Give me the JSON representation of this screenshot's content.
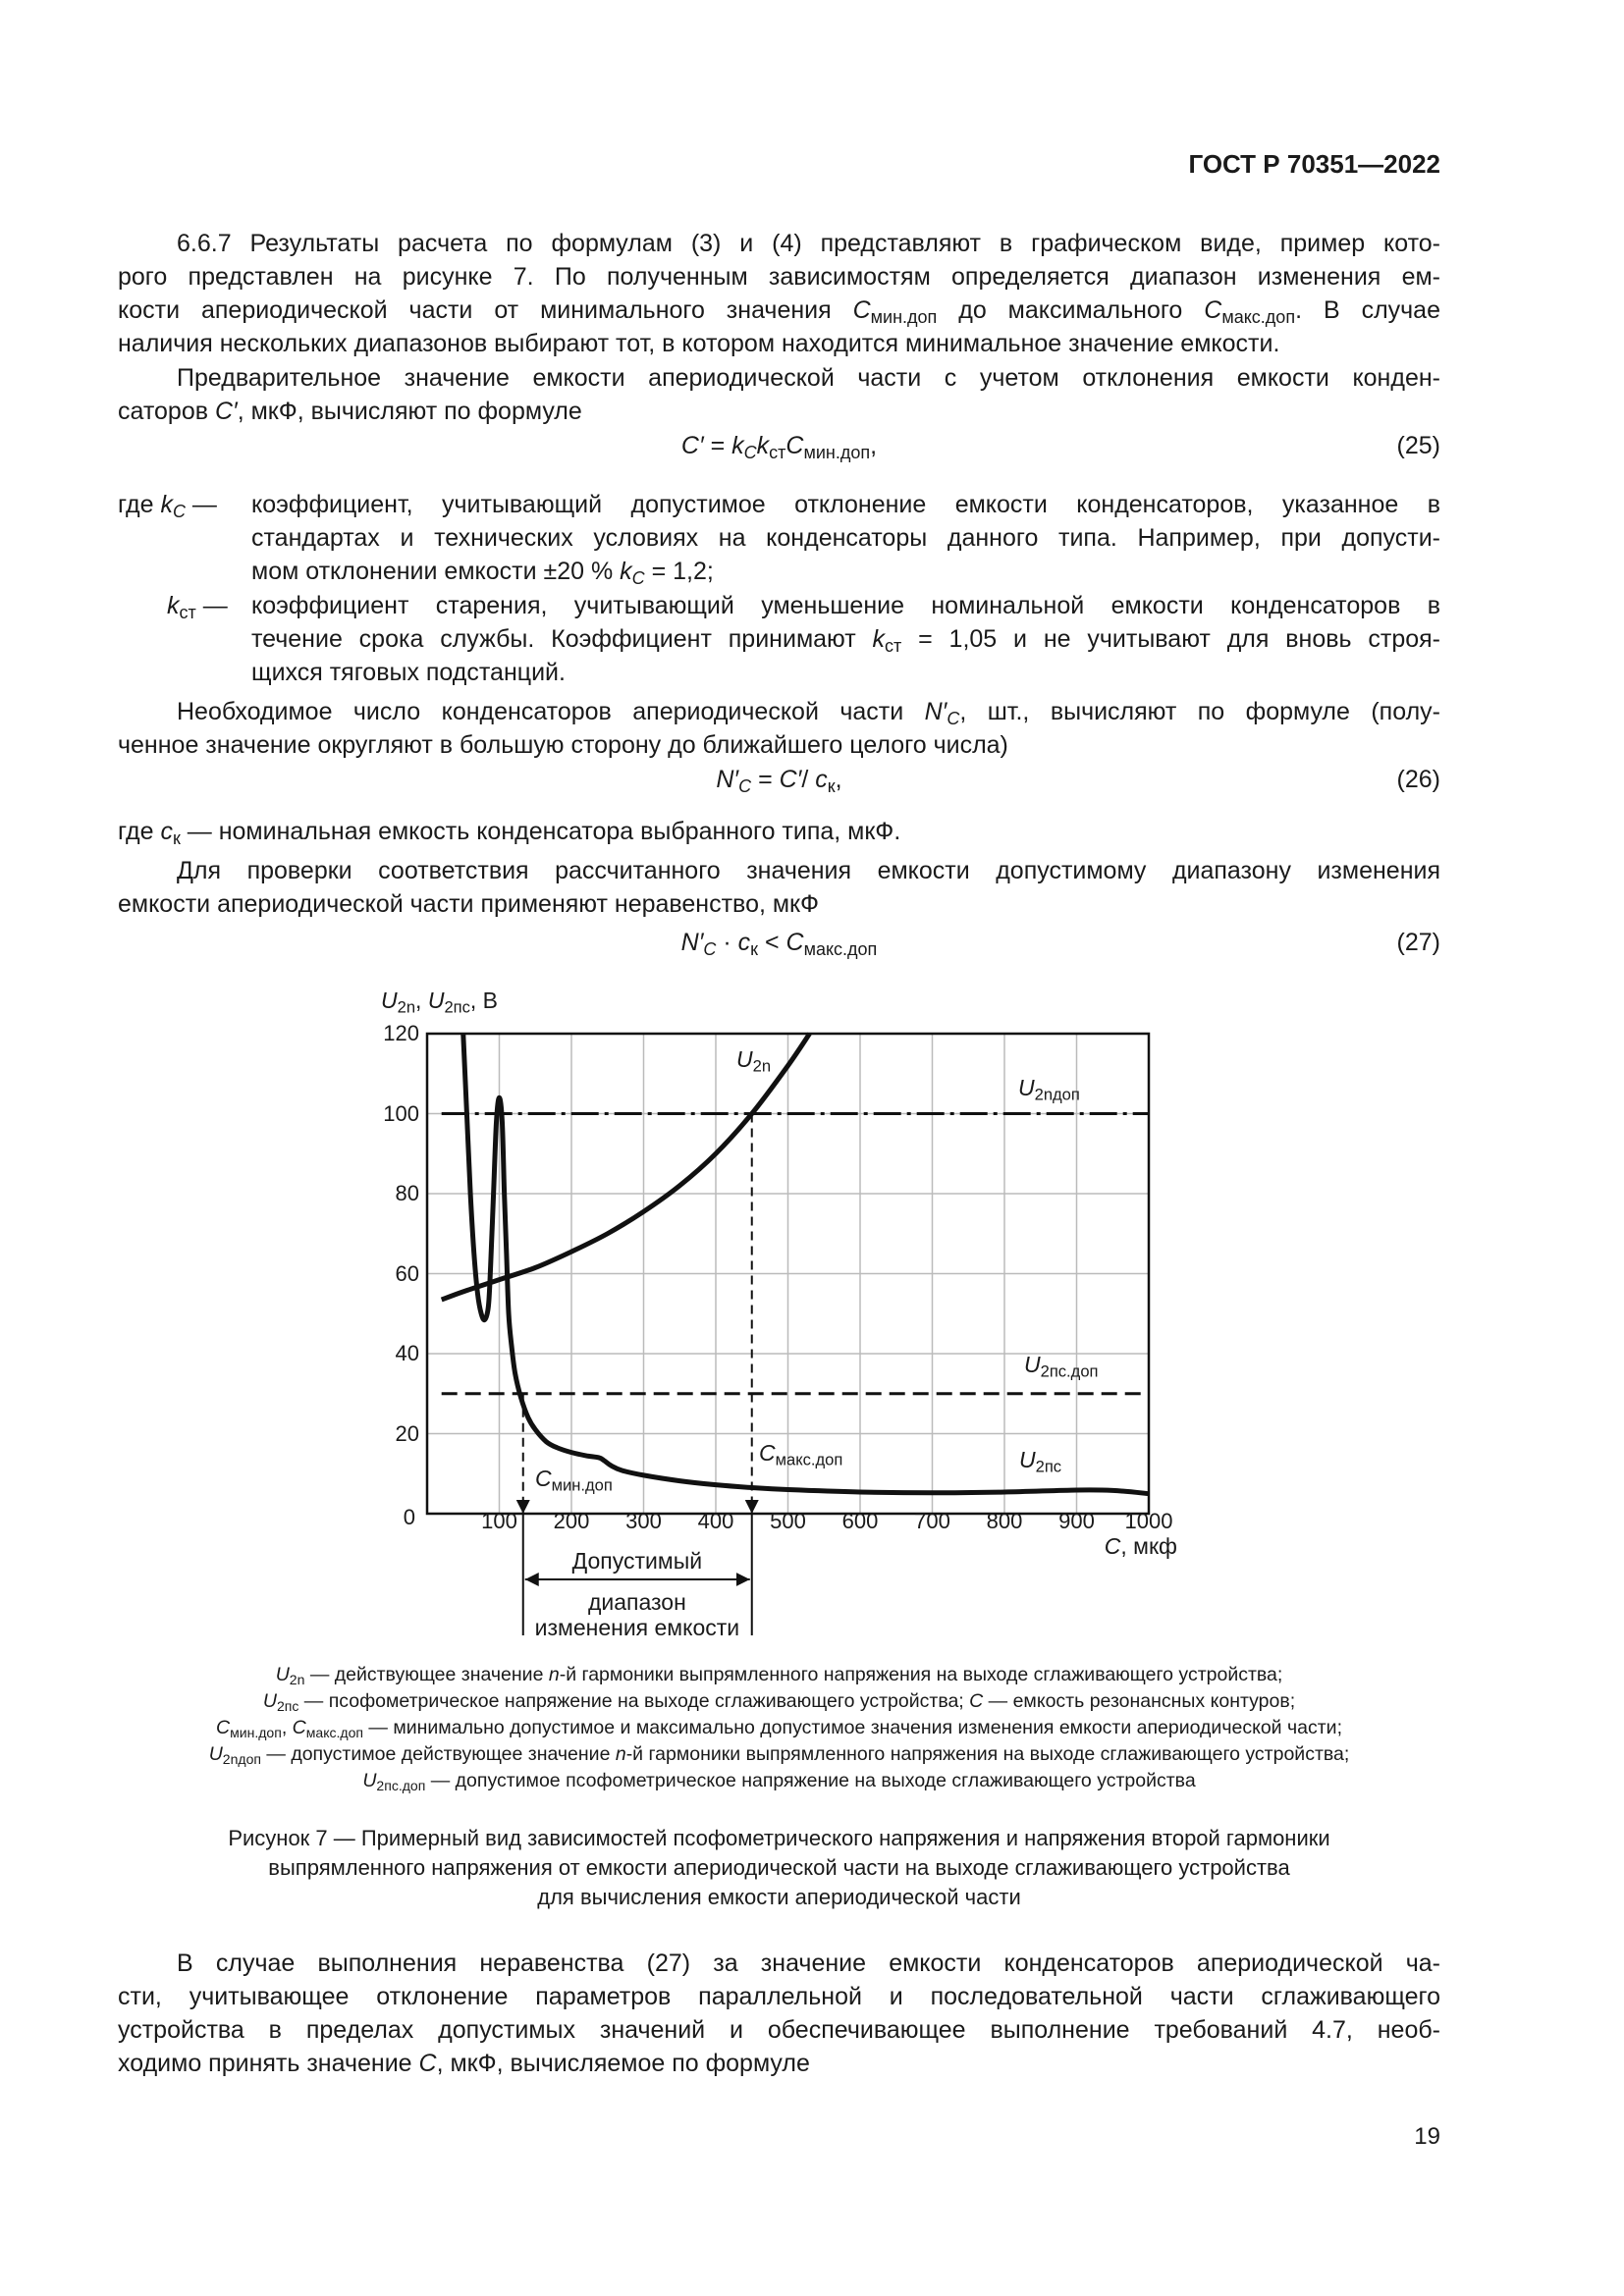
{
  "header": {
    "doc_id": "ГОСТ Р 70351—2022"
  },
  "body": {
    "p1": [
      [
        "6.6.7 Результаты расчета по формулам (3) и (4) представляют в графическом виде, пример кото-"
      ],
      [
        "рого представлен на рисунке 7. По полученным зависимостям определяется диапазон изменения ем-"
      ],
      [
        "кости апериодической части от минимального значения ",
        {
          "v": "C",
          "s": "мин.доп"
        },
        " до максимального ",
        {
          "v": "C",
          "s": "макс.доп"
        },
        ". В случае"
      ],
      [
        "наличия нескольких диапазонов выбирают тот, в котором находится минимальное значение емкости."
      ]
    ],
    "p2": [
      [
        "Предварительное значение емкости апериодической части с учетом отклонения емкости конден-"
      ],
      [
        "саторов ",
        {
          "v": "C′"
        },
        ", мкФ, вычисляют по формуле"
      ]
    ],
    "f25": {
      "expr": [
        {
          "v": "C′"
        },
        " = ",
        {
          "v": "k",
          "s": "C",
          "si": true
        },
        {
          "v": "k",
          "s": "ст"
        },
        {
          "v": "C",
          "s": "мин.доп"
        },
        ","
      ],
      "num": "(25)"
    },
    "where1": {
      "label": [
        "где ",
        {
          "v": "k",
          "s": "C",
          "si": true
        },
        " —"
      ],
      "lines": [
        [
          "коэффициент, учитывающий допустимое отклонение емкости конденсаторов, указанное в"
        ],
        [
          "стандартах и технических условиях на конденсаторы данного типа. Например, при допусти-"
        ],
        [
          "мом отклонении емкости ±20 % ",
          {
            "v": "k",
            "s": "C",
            "si": true
          },
          " = 1,2;"
        ]
      ]
    },
    "where2": {
      "label": [
        {
          "v": "k",
          "s": "ст"
        },
        " —"
      ],
      "lines": [
        [
          "коэффициент старения, учитывающий уменьшение номинальной емкости конденсаторов в"
        ],
        [
          "течение срока службы. Коэффициент принимают ",
          {
            "v": "k",
            "s": "ст"
          },
          " = 1,05 и не учитывают для вновь строя-"
        ],
        [
          "щихся тяговых подстанций."
        ]
      ]
    },
    "p3": [
      [
        "Необходимое число конденсаторов апериодической части ",
        {
          "v": "N′",
          "s": "C",
          "si": true
        },
        ", шт., вычисляют по формуле (полу-"
      ],
      [
        "ченное значение округляют в большую сторону до ближайшего целого числа)"
      ]
    ],
    "f26": {
      "expr": [
        {
          "v": "N′",
          "s": "C",
          "si": true
        },
        " = ",
        {
          "v": "C′"
        },
        "/ ",
        {
          "v": "c",
          "s": "к"
        },
        ","
      ],
      "num": "(26)"
    },
    "p_ck": [
      [
        "где ",
        {
          "v": "c",
          "s": "к"
        },
        " — номинальная емкость конденсатора выбранного типа, мкФ."
      ]
    ],
    "p4": [
      [
        "Для проверки соответствия рассчитанного значения емкости  допустимому диапазону изменения"
      ],
      [
        "емкости апериодической части применяют неравенство, мкФ"
      ]
    ],
    "f27": {
      "expr": [
        {
          "v": "N′",
          "s": "C",
          "si": true
        },
        " · ",
        {
          "v": "c",
          "s": "к"
        },
        " < ",
        {
          "v": "C",
          "s": "макс.доп"
        }
      ],
      "num": "(27)"
    },
    "p5": [
      [
        "В случае выполнения неравенства (27) за значение емкости конденсаторов апериодической ча-"
      ],
      [
        "сти, учитывающее отклонение параметров параллельной и последовательной части сглаживающего"
      ],
      [
        "устройства  в  пределах  допустимых значений и обеспечивающее выполнение требований 4.7, необ-"
      ],
      [
        "ходимо принять значение ",
        {
          "v": "C"
        },
        ", мкФ, вычисляемое по формуле"
      ]
    ]
  },
  "figure": {
    "legend": [
      [
        {
          "v": "U",
          "s": "2n"
        },
        " — действующее значение ",
        {
          "v": "n"
        },
        "-й гармоники выпрямленного напряжения на выходе сглаживающего устройства;"
      ],
      [
        {
          "v": "U",
          "s": "2пс"
        },
        " — псофометрическое напряжение на выходе сглаживающего устройства; ",
        {
          "v": "C"
        },
        " — емкость резонансных контуров;"
      ],
      [
        {
          "v": "C",
          "s": "мин.доп"
        },
        ", ",
        {
          "v": "C",
          "s": "макс.доп"
        },
        " — минимально допустимое и максимально допустимое значения изменения емкости апериодической части;"
      ],
      [
        {
          "v": "U",
          "s": "2nдоп"
        },
        " — допустимое действующее значение ",
        {
          "v": "n"
        },
        "-й гармоники выпрямленного напряжения на выходе сглаживающего устройства;"
      ],
      [
        {
          "v": "U",
          "s": "2пс.доп"
        },
        " — допустимое псофометрическое напряжение на выходе сглаживающего устройства"
      ]
    ],
    "caption": [
      [
        "Рисунок 7 — Примерный вид зависимостей псофометрического напряжения и напряжения второй гармоники"
      ],
      [
        "выпрямленного напряжения от емкости апериодической части на выходе сглаживающего устройства"
      ],
      [
        "для вычисления емкости апериодической части"
      ]
    ]
  },
  "chart_data": {
    "type": "line",
    "title": "",
    "ylabel": [
      {
        "v": "U",
        "s": "2n"
      },
      ", ",
      {
        "v": "U",
        "s": "2пс"
      },
      ", В"
    ],
    "xlabel": [
      {
        "v": "C"
      },
      ", мкф"
    ],
    "xlim": [
      0,
      1000
    ],
    "ylim": [
      0,
      120
    ],
    "x_ticks": [
      0,
      100,
      200,
      300,
      400,
      500,
      600,
      700,
      800,
      900,
      1000
    ],
    "y_ticks": [
      20,
      40,
      60,
      80,
      100,
      120
    ],
    "grid": true,
    "series": [
      {
        "name": "U2n",
        "label": [
          {
            "v": "U",
            "s": "2n"
          }
        ],
        "style": "solid",
        "points": [
          [
            20,
            53.5
          ],
          [
            50,
            55.5
          ],
          [
            100,
            58.5
          ],
          [
            150,
            61.5
          ],
          [
            200,
            65.5
          ],
          [
            250,
            70
          ],
          [
            300,
            75.5
          ],
          [
            350,
            82
          ],
          [
            400,
            90
          ],
          [
            450,
            100
          ],
          [
            500,
            112
          ],
          [
            530,
            120
          ]
        ]
      },
      {
        "name": "U2пс",
        "label": [
          {
            "v": "U",
            "s": "2пс"
          }
        ],
        "style": "solid",
        "points": [
          [
            50,
            120
          ],
          [
            55,
            100
          ],
          [
            60,
            80
          ],
          [
            65,
            65
          ],
          [
            70,
            55
          ],
          [
            75,
            50
          ],
          [
            80,
            48.5
          ],
          [
            85,
            52
          ],
          [
            88,
            62
          ],
          [
            92,
            80
          ],
          [
            96,
            98
          ],
          [
            100,
            104
          ],
          [
            104,
            98
          ],
          [
            107,
            80
          ],
          [
            110,
            65
          ],
          [
            113,
            50
          ],
          [
            117,
            42
          ],
          [
            122,
            35
          ],
          [
            130,
            29
          ],
          [
            140,
            24
          ],
          [
            150,
            21
          ],
          [
            165,
            18
          ],
          [
            180,
            16.5
          ],
          [
            200,
            15.3
          ],
          [
            220,
            14.5
          ],
          [
            238,
            14
          ],
          [
            245,
            13.3
          ],
          [
            255,
            12
          ],
          [
            270,
            10.8
          ],
          [
            300,
            9.6
          ],
          [
            350,
            8.2
          ],
          [
            400,
            7.2
          ],
          [
            450,
            6.5
          ],
          [
            500,
            6
          ],
          [
            600,
            5.4
          ],
          [
            700,
            5.2
          ],
          [
            800,
            5.4
          ],
          [
            900,
            5.9
          ],
          [
            950,
            5.8
          ],
          [
            1000,
            5
          ]
        ]
      }
    ],
    "thresholds": [
      {
        "name": "U2nдоп",
        "label": [
          {
            "v": "U",
            "s": "2nдоп"
          }
        ],
        "value": 100,
        "from": 20,
        "style": "dash-dot"
      },
      {
        "name": "U2пс.доп",
        "label": [
          {
            "v": "U",
            "s": "2пс.доп"
          }
        ],
        "value": 30,
        "from": 20,
        "style": "dashed"
      }
    ],
    "markers": [
      {
        "name": "Cмин.доп",
        "label": [
          {
            "v": "C",
            "s": "мин.доп"
          }
        ],
        "x": 133,
        "from_y": 30
      },
      {
        "name": "Cмакс.доп",
        "label": [
          {
            "v": "C",
            "s": "макс.доп"
          }
        ],
        "x": 450,
        "from_y": 100
      }
    ],
    "range_annotation": [
      "Допустимый",
      "диапазон",
      "изменения емкости"
    ],
    "colors": {
      "curve": "#111111",
      "grid": "#bbbbbb"
    }
  },
  "page_number": "19"
}
